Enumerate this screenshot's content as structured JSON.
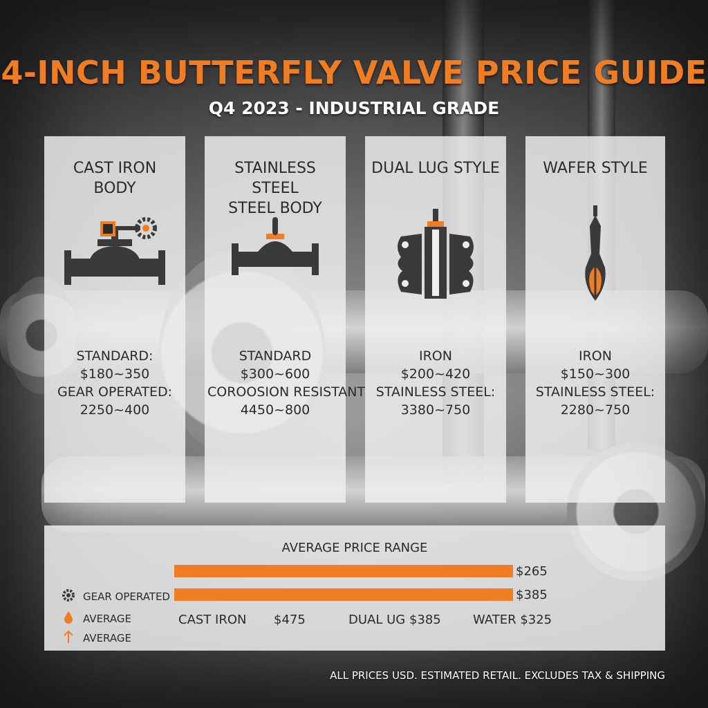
{
  "header": {
    "title": "4-INCH BUTTERFLY VALVE PRICE GUIDE",
    "subtitle": "Q4 2023 - INDUSTRIAL GRADE"
  },
  "colors": {
    "accent": "#ee7d24",
    "icon": "#3a3a3a",
    "card_bg": "#eeeeee"
  },
  "cards": [
    {
      "title": "CAST IRON\nBODY",
      "icon": "gear-operated-valve-icon",
      "lines": [
        "STANDARD:",
        "$180~350",
        "GEAR OPERATED:",
        "2250~400"
      ]
    },
    {
      "title": "STAINLESS STEEL\nSTEEL BODY",
      "icon": "inline-valve-icon",
      "lines": [
        "STANDARD",
        "$300~600",
        "COROOSION RESISTANT",
        "4450~800"
      ]
    },
    {
      "title": "DUAL LUG STYLE",
      "icon": "lug-valve-icon",
      "lines": [
        "IRON",
        "$200~420",
        "STAINLESS STEEL:",
        "3380~750"
      ]
    },
    {
      "title": "WAFER STYLE",
      "icon": "wafer-disc-icon",
      "lines": [
        "IRON",
        "$150~300",
        "STAINLESS STEEL:",
        "2280~750"
      ]
    }
  ],
  "summary": {
    "title": "AVERAGE PRICE RANGE",
    "bars": [
      {
        "label": "$265",
        "value": 265,
        "fill": 0.7
      },
      {
        "label": "$385",
        "value": 385,
        "fill": 0.7
      }
    ],
    "legend": [
      {
        "icon": "gear-icon",
        "label": "GEAR OPERATED"
      },
      {
        "icon": "drop-icon",
        "label": "AVERAGE"
      },
      {
        "icon": "up-arrow-icon",
        "label": "AVERAGE"
      }
    ],
    "categories": [
      "CAST IRON",
      "$475",
      "DUAL UG $385",
      "WATER $325"
    ]
  },
  "footer": "ALL PRICES USD. ESTIMATED RETAIL. EXCLUDES TAX & SHIPPING"
}
